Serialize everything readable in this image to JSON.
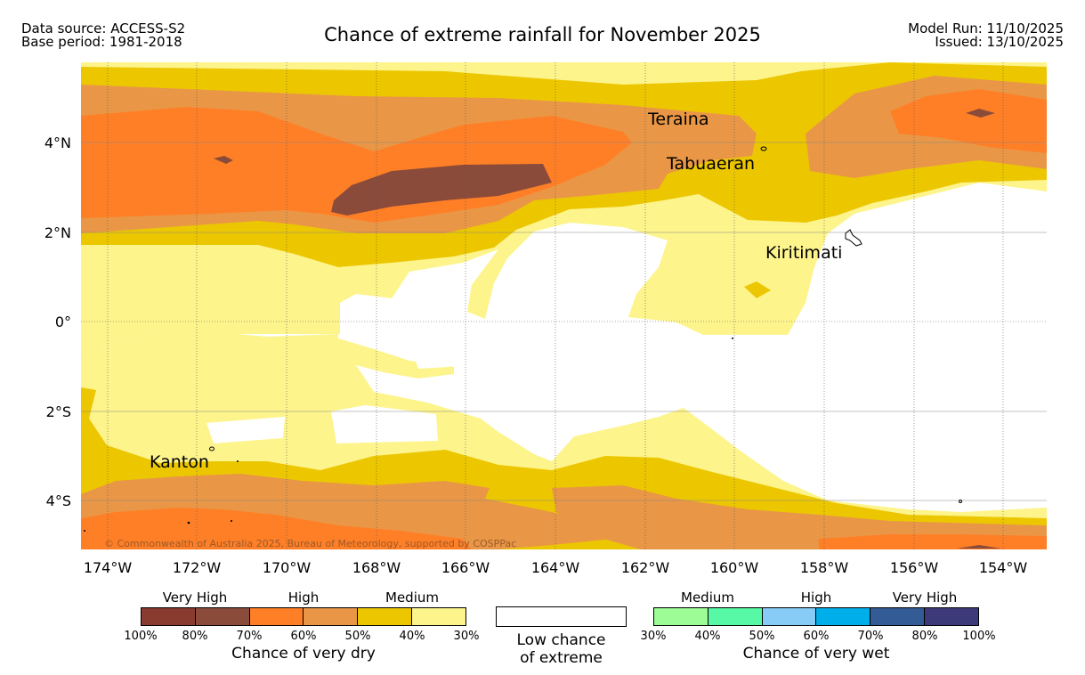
{
  "header": {
    "data_source": "Data source: ACCESS-S2",
    "base_period": "Base period: 1981-2018",
    "title": "Chance of extreme rainfall for November 2025",
    "model_run": "Model Run: 11/10/2025",
    "issued": "Issued: 13/10/2025"
  },
  "map": {
    "lon_labels": [
      "174°W",
      "172°W",
      "170°W",
      "168°W",
      "166°W",
      "164°W",
      "162°W",
      "160°W",
      "158°W",
      "156°W",
      "154°W"
    ],
    "lat_labels": [
      "4°N",
      "2°N",
      "0°",
      "2°S",
      "4°S"
    ],
    "places": [
      "Teraina",
      "Tabuaeran",
      "Kiritimati",
      "Kanton"
    ],
    "copyright": "© Commonwealth of Australia 2025, Bureau of Meteorology, supported by COSPPac",
    "colors": {
      "dry_100_80": "#8a3b30",
      "dry_80_70": "#8b4b3a",
      "dry_70_60": "#ff7f27",
      "dry_60_50": "#e99746",
      "dry_50_40": "#ecc700",
      "dry_40_30": "#fdf48c"
    }
  },
  "legend": {
    "dry": {
      "levels": [
        "Very High",
        "High",
        "Medium"
      ],
      "percent_ticks": [
        "100%",
        "80%",
        "70%",
        "60%",
        "50%",
        "40%",
        "30%"
      ],
      "caption": "Chance of very dry",
      "colors": [
        "#8a3b30",
        "#8b4b3a",
        "#ff7f27",
        "#e99746",
        "#ecc700",
        "#fdf48c"
      ]
    },
    "neutral": {
      "line1": "Low chance",
      "line2": "of extreme"
    },
    "wet": {
      "levels": [
        "Medium",
        "High",
        "Very High"
      ],
      "percent_ticks": [
        "30%",
        "40%",
        "50%",
        "60%",
        "70%",
        "80%",
        "100%"
      ],
      "caption": "Chance of very wet",
      "colors": [
        "#9efc97",
        "#57f9a6",
        "#87ccf7",
        "#00aeea",
        "#335b96",
        "#3d3a7a"
      ]
    }
  }
}
